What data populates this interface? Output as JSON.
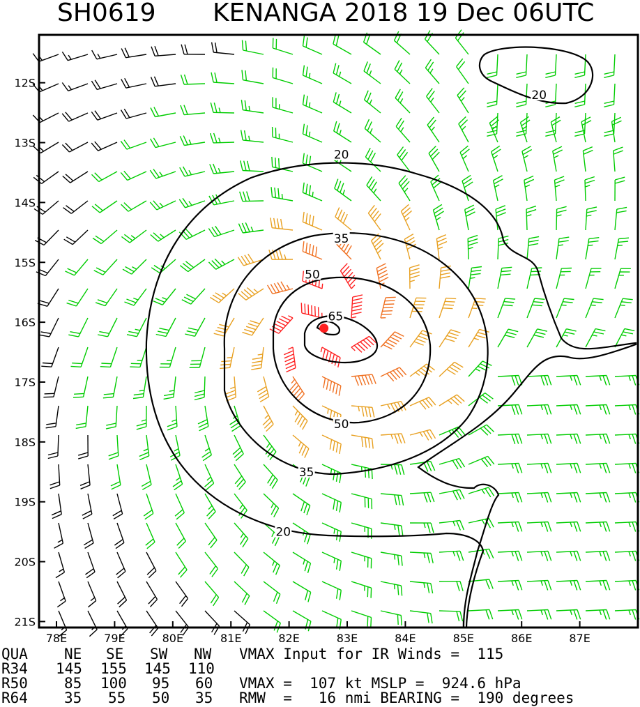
{
  "header": {
    "storm_id": "SH0619",
    "storm_title": "KENANGA 2018 19 Dec 06UTC"
  },
  "chart_data": {
    "type": "wind-barb-map",
    "title": "SH0619 KENANGA 2018 19 Dec 06UTC",
    "x_ticks": [
      "78E",
      "79E",
      "80E",
      "81E",
      "82E",
      "83E",
      "84E",
      "85E",
      "86E",
      "87E"
    ],
    "y_ticks": [
      "12S",
      "13S",
      "14S",
      "15S",
      "16S",
      "17S",
      "18S",
      "19S",
      "20S",
      "21S"
    ],
    "x_range_deg_E": [
      77.7,
      88.0
    ],
    "y_range_deg_S": [
      11.2,
      21.1
    ],
    "storm_center": {
      "lon": 82.6,
      "lat": -16.1
    },
    "contour_levels_kt": [
      20,
      35,
      50,
      65
    ],
    "contour_labels": [
      {
        "value": "20",
        "lon": 86.3,
        "lat": -12.2
      },
      {
        "value": "20",
        "lon": 82.9,
        "lat": -13.2
      },
      {
        "value": "20",
        "lon": 81.9,
        "lat": -19.5
      },
      {
        "value": "35",
        "lon": 82.9,
        "lat": -14.6
      },
      {
        "value": "35",
        "lon": 82.3,
        "lat": -18.5
      },
      {
        "value": "50",
        "lon": 82.4,
        "lat": -15.2
      },
      {
        "value": "50",
        "lon": 82.9,
        "lat": -17.7
      },
      {
        "value": "65",
        "lon": 82.8,
        "lat": -15.9
      }
    ],
    "barb_colors": {
      "lt20": "#000000",
      "20to35": "#00cc00",
      "35to50": "#e8a020",
      "50to65": "#f07020",
      "ge65": "#ff2020"
    },
    "center_color": "#ff2020"
  },
  "info": {
    "row0": {
      "label": "QUA",
      "ne": "NE",
      "se": "SE",
      "sw": "SW",
      "nw": "NW",
      "text": "VMAX Input for IR Winds =  115"
    },
    "row1": {
      "label": "R34",
      "ne": "145",
      "se": "155",
      "sw": "145",
      "nw": "110"
    },
    "row2": {
      "label": "R50",
      "ne": "85",
      "se": "100",
      "sw": "95",
      "nw": "60",
      "text": "VMAX =  107 kt MSLP =  924.6 hPa"
    },
    "row3": {
      "label": "R64",
      "ne": "35",
      "se": "55",
      "sw": "50",
      "nw": "35",
      "text": "RMW  =   16 nmi BEARING =  190 degrees"
    }
  }
}
